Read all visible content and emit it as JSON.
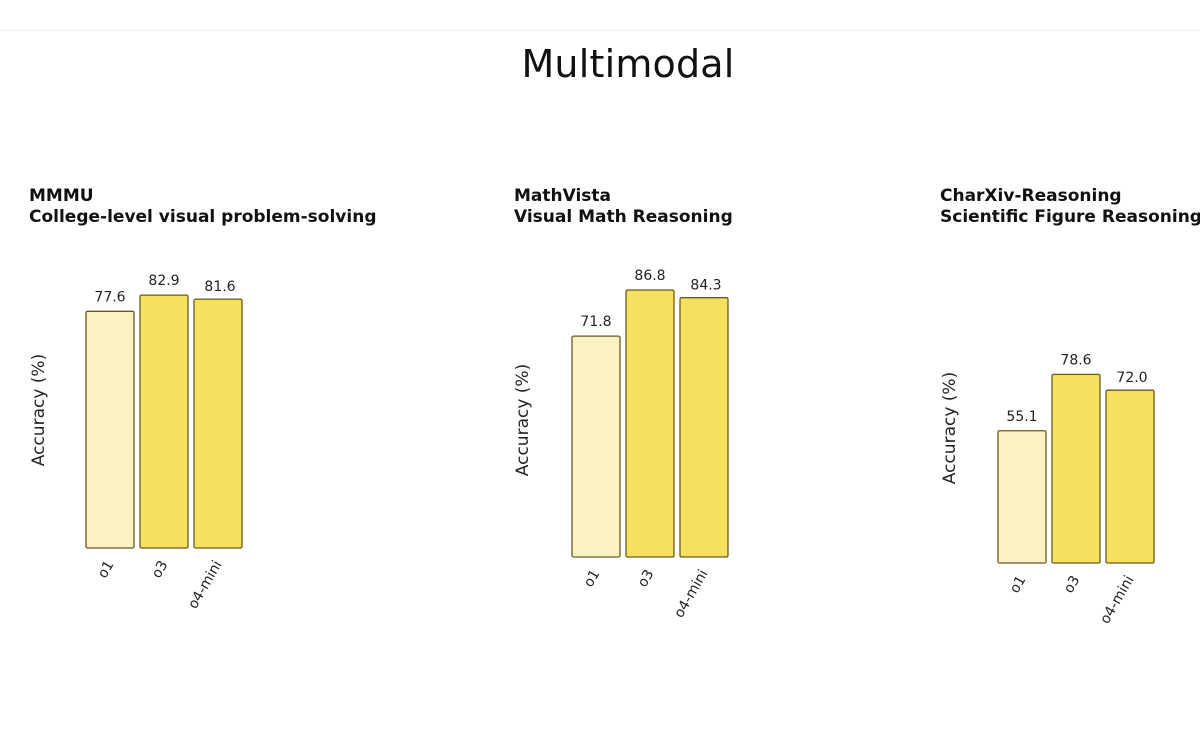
{
  "title": "Multimodal",
  "colors": {
    "o1": "#fbf2c3",
    "o3": "#f7e05e",
    "o4-mini": "#f7e05e",
    "bar_border": "#6b5a1e"
  },
  "chart_data": [
    {
      "type": "bar",
      "title": "MMMU",
      "subtitle": "College-level visual problem-solving",
      "ylabel": "Accuracy (%)",
      "categories": [
        "o1",
        "o3",
        "o4-mini"
      ],
      "values": [
        77.6,
        82.9,
        81.6
      ],
      "value_labels": [
        "77.6",
        "82.9",
        "81.6"
      ]
    },
    {
      "type": "bar",
      "title": "MathVista",
      "subtitle": "Visual Math Reasoning",
      "ylabel": "Accuracy (%)",
      "categories": [
        "o1",
        "o3",
        "o4-mini"
      ],
      "values": [
        71.8,
        86.8,
        84.3
      ],
      "value_labels": [
        "71.8",
        "86.8",
        "84.3"
      ]
    },
    {
      "type": "bar",
      "title": "CharXiv-Reasoning",
      "subtitle": "Scientific Figure Reasoning",
      "ylabel": "Accuracy (%)",
      "categories": [
        "o1",
        "o3",
        "o4-mini"
      ],
      "values": [
        55.1,
        78.6,
        72.0
      ],
      "value_labels": [
        "55.1",
        "78.6",
        "72.0"
      ]
    }
  ]
}
